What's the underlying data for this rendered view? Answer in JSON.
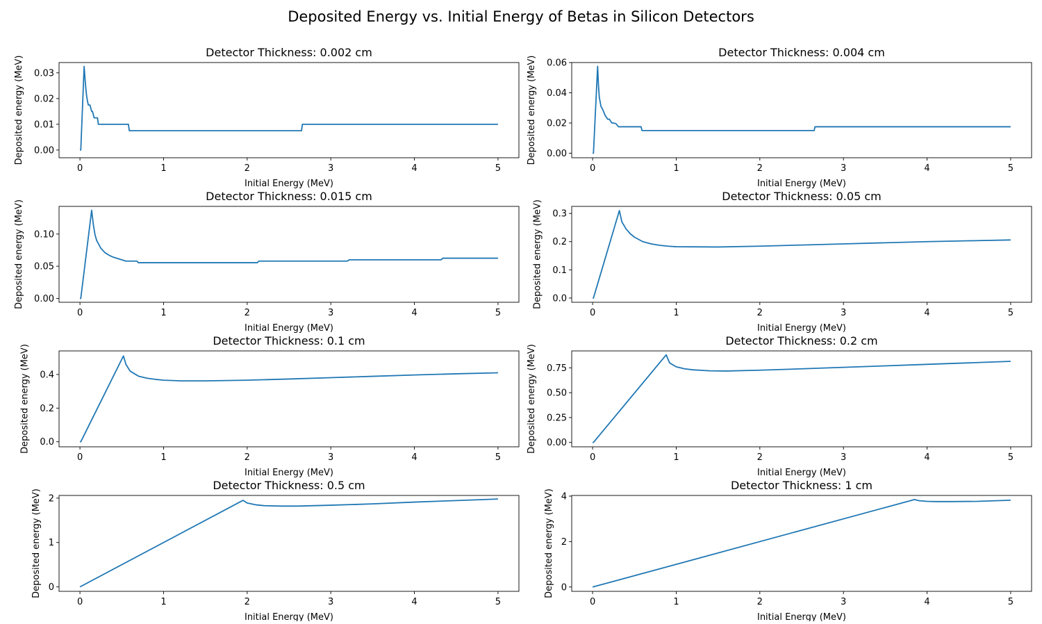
{
  "figure": {
    "suptitle": "Deposited Energy vs. Initial Energy of Betas in Silicon Detectors",
    "line_color": "#1f77b4"
  },
  "chart_data": [
    {
      "type": "line",
      "title": "Detector Thickness: 0.002 cm",
      "xlabel": "Initial Energy (MeV)",
      "ylabel": "Deposited energy (MeV)",
      "xlim": [
        -0.25,
        5.25
      ],
      "ylim": [
        -0.003,
        0.034
      ],
      "xticks": [
        0,
        1,
        2,
        3,
        4,
        5
      ],
      "yticks": [
        0.0,
        0.01,
        0.02,
        0.03
      ],
      "ytick_labels": [
        "0.00",
        "0.01",
        "0.02",
        "0.03"
      ],
      "grid": false,
      "series": [
        {
          "x": [
            0,
            0.01,
            0.05,
            0.06,
            0.07,
            0.08,
            0.09,
            0.1,
            0.12,
            0.14,
            0.15,
            0.17,
            0.2,
            0.21,
            0.22,
            0.58,
            0.59,
            2.65,
            2.66,
            5.0
          ],
          "y": [
            0,
            0.0,
            0.0325,
            0.028,
            0.024,
            0.021,
            0.019,
            0.0175,
            0.0175,
            0.015,
            0.015,
            0.0125,
            0.0125,
            0.0125,
            0.01,
            0.01,
            0.0075,
            0.0075,
            0.01,
            0.01
          ]
        }
      ]
    },
    {
      "type": "line",
      "title": "Detector Thickness: 0.004 cm",
      "xlabel": "Initial Energy (MeV)",
      "ylabel": "Deposited energy (MeV)",
      "xlim": [
        -0.25,
        5.25
      ],
      "ylim": [
        -0.003,
        0.06
      ],
      "xticks": [
        0,
        1,
        2,
        3,
        4,
        5
      ],
      "yticks": [
        0.0,
        0.02,
        0.04,
        0.06
      ],
      "ytick_labels": [
        "0.00",
        "0.02",
        "0.04",
        "0.06"
      ],
      "grid": false,
      "series": [
        {
          "x": [
            0,
            0.01,
            0.06,
            0.07,
            0.08,
            0.1,
            0.12,
            0.15,
            0.18,
            0.2,
            0.23,
            0.25,
            0.28,
            0.31,
            0.33,
            0.58,
            0.59,
            2.65,
            2.66,
            5.0
          ],
          "y": [
            0,
            0.0,
            0.0575,
            0.045,
            0.037,
            0.031,
            0.029,
            0.025,
            0.0225,
            0.0225,
            0.02,
            0.02,
            0.0195,
            0.0175,
            0.0175,
            0.0175,
            0.015,
            0.015,
            0.0175,
            0.0175
          ]
        }
      ]
    },
    {
      "type": "line",
      "title": "Detector Thickness: 0.015 cm",
      "xlabel": "Initial Energy (MeV)",
      "ylabel": "Deposited energy (MeV)",
      "xlim": [
        -0.25,
        5.25
      ],
      "ylim": [
        -0.006,
        0.143
      ],
      "xticks": [
        0,
        1,
        2,
        3,
        4,
        5
      ],
      "yticks": [
        0.0,
        0.05,
        0.1
      ],
      "ytick_labels": [
        "0.00",
        "0.05",
        "0.10"
      ],
      "grid": false,
      "series": [
        {
          "x": [
            0,
            0.01,
            0.14,
            0.16,
            0.18,
            0.2,
            0.25,
            0.3,
            0.35,
            0.4,
            0.45,
            0.5,
            0.55,
            0.68,
            0.7,
            2.12,
            2.14,
            3.2,
            3.22,
            4.32,
            4.34,
            5.0
          ],
          "y": [
            0,
            0.0,
            0.137,
            0.115,
            0.099,
            0.09,
            0.078,
            0.071,
            0.067,
            0.064,
            0.062,
            0.06,
            0.058,
            0.058,
            0.0555,
            0.0555,
            0.058,
            0.058,
            0.06,
            0.06,
            0.0625,
            0.0625
          ]
        }
      ]
    },
    {
      "type": "line",
      "title": "Detector Thickness: 0.05 cm",
      "xlabel": "Initial Energy (MeV)",
      "ylabel": "Deposited energy (MeV)",
      "xlim": [
        -0.25,
        5.25
      ],
      "ylim": [
        -0.015,
        0.325
      ],
      "xticks": [
        0,
        1,
        2,
        3,
        4,
        5
      ],
      "yticks": [
        0.0,
        0.1,
        0.2,
        0.3
      ],
      "ytick_labels": [
        "0.0",
        "0.1",
        "0.2",
        "0.3"
      ],
      "grid": false,
      "series": [
        {
          "x": [
            0,
            0.01,
            0.32,
            0.35,
            0.4,
            0.45,
            0.5,
            0.6,
            0.7,
            0.8,
            0.9,
            1.0,
            1.5,
            2.0,
            2.5,
            3.0,
            3.5,
            4.0,
            4.5,
            5.0
          ],
          "y": [
            0,
            0.0,
            0.31,
            0.27,
            0.245,
            0.228,
            0.216,
            0.2,
            0.192,
            0.187,
            0.184,
            0.182,
            0.181,
            0.184,
            0.188,
            0.192,
            0.196,
            0.2,
            0.203,
            0.206
          ]
        }
      ]
    },
    {
      "type": "line",
      "title": "Detector Thickness: 0.1 cm",
      "xlabel": "Initial Energy (MeV)",
      "ylabel": "Deposited energy (MeV)",
      "xlim": [
        -0.25,
        5.25
      ],
      "ylim": [
        -0.03,
        0.54
      ],
      "xticks": [
        0,
        1,
        2,
        3,
        4,
        5
      ],
      "yticks": [
        0.0,
        0.2,
        0.4
      ],
      "ytick_labels": [
        "0.0",
        "0.2",
        "0.4"
      ],
      "grid": false,
      "series": [
        {
          "x": [
            0,
            0.01,
            0.52,
            0.55,
            0.6,
            0.7,
            0.8,
            0.9,
            1.0,
            1.2,
            1.5,
            2.0,
            2.5,
            3.0,
            3.5,
            4.0,
            4.5,
            5.0
          ],
          "y": [
            0,
            0.0,
            0.51,
            0.46,
            0.42,
            0.39,
            0.378,
            0.371,
            0.366,
            0.362,
            0.362,
            0.366,
            0.373,
            0.381,
            0.389,
            0.397,
            0.404,
            0.41
          ]
        }
      ]
    },
    {
      "type": "line",
      "title": "Detector Thickness: 0.2 cm",
      "xlabel": "Initial Energy (MeV)",
      "ylabel": "Deposited energy (MeV)",
      "xlim": [
        -0.25,
        5.25
      ],
      "ylim": [
        -0.044,
        0.92
      ],
      "xticks": [
        0,
        1,
        2,
        3,
        4,
        5
      ],
      "yticks": [
        0.0,
        0.25,
        0.5,
        0.75
      ],
      "ytick_labels": [
        "0.00",
        "0.25",
        "0.50",
        "0.75"
      ],
      "grid": false,
      "series": [
        {
          "x": [
            0,
            0.01,
            0.88,
            0.92,
            1.0,
            1.1,
            1.2,
            1.4,
            1.6,
            2.0,
            2.5,
            3.0,
            3.5,
            4.0,
            4.5,
            5.0
          ],
          "y": [
            0,
            0.0,
            0.88,
            0.8,
            0.76,
            0.74,
            0.73,
            0.72,
            0.718,
            0.726,
            0.74,
            0.755,
            0.77,
            0.785,
            0.8,
            0.815
          ]
        }
      ]
    },
    {
      "type": "line",
      "title": "Detector Thickness: 0.5 cm",
      "xlabel": "Initial Energy (MeV)",
      "ylabel": "Deposited energy (MeV)",
      "xlim": [
        -0.25,
        5.25
      ],
      "ylim": [
        -0.1,
        2.06
      ],
      "xticks": [
        0,
        1,
        2,
        3,
        4,
        5
      ],
      "yticks": [
        0,
        1,
        2
      ],
      "ytick_labels": [
        "0",
        "1",
        "2"
      ],
      "grid": false,
      "series": [
        {
          "x": [
            0,
            1.95,
            2.0,
            2.1,
            2.2,
            2.4,
            2.6,
            3.0,
            3.5,
            4.0,
            4.5,
            5.0
          ],
          "y": [
            0,
            1.95,
            1.89,
            1.85,
            1.83,
            1.82,
            1.82,
            1.84,
            1.87,
            1.91,
            1.945,
            1.98
          ]
        }
      ]
    },
    {
      "type": "line",
      "title": "Detector Thickness: 1 cm",
      "xlabel": "Initial Energy (MeV)",
      "ylabel": "Deposited energy (MeV)",
      "xlim": [
        -0.25,
        5.25
      ],
      "ylim": [
        -0.19,
        4.03
      ],
      "xticks": [
        0,
        1,
        2,
        3,
        4,
        5
      ],
      "yticks": [
        0,
        2,
        4
      ],
      "ytick_labels": [
        "0",
        "2",
        "4"
      ],
      "grid": false,
      "series": [
        {
          "x": [
            0,
            3.85,
            3.9,
            4.0,
            4.1,
            4.3,
            4.6,
            5.0
          ],
          "y": [
            0,
            3.85,
            3.8,
            3.77,
            3.76,
            3.76,
            3.77,
            3.82
          ]
        }
      ]
    }
  ]
}
